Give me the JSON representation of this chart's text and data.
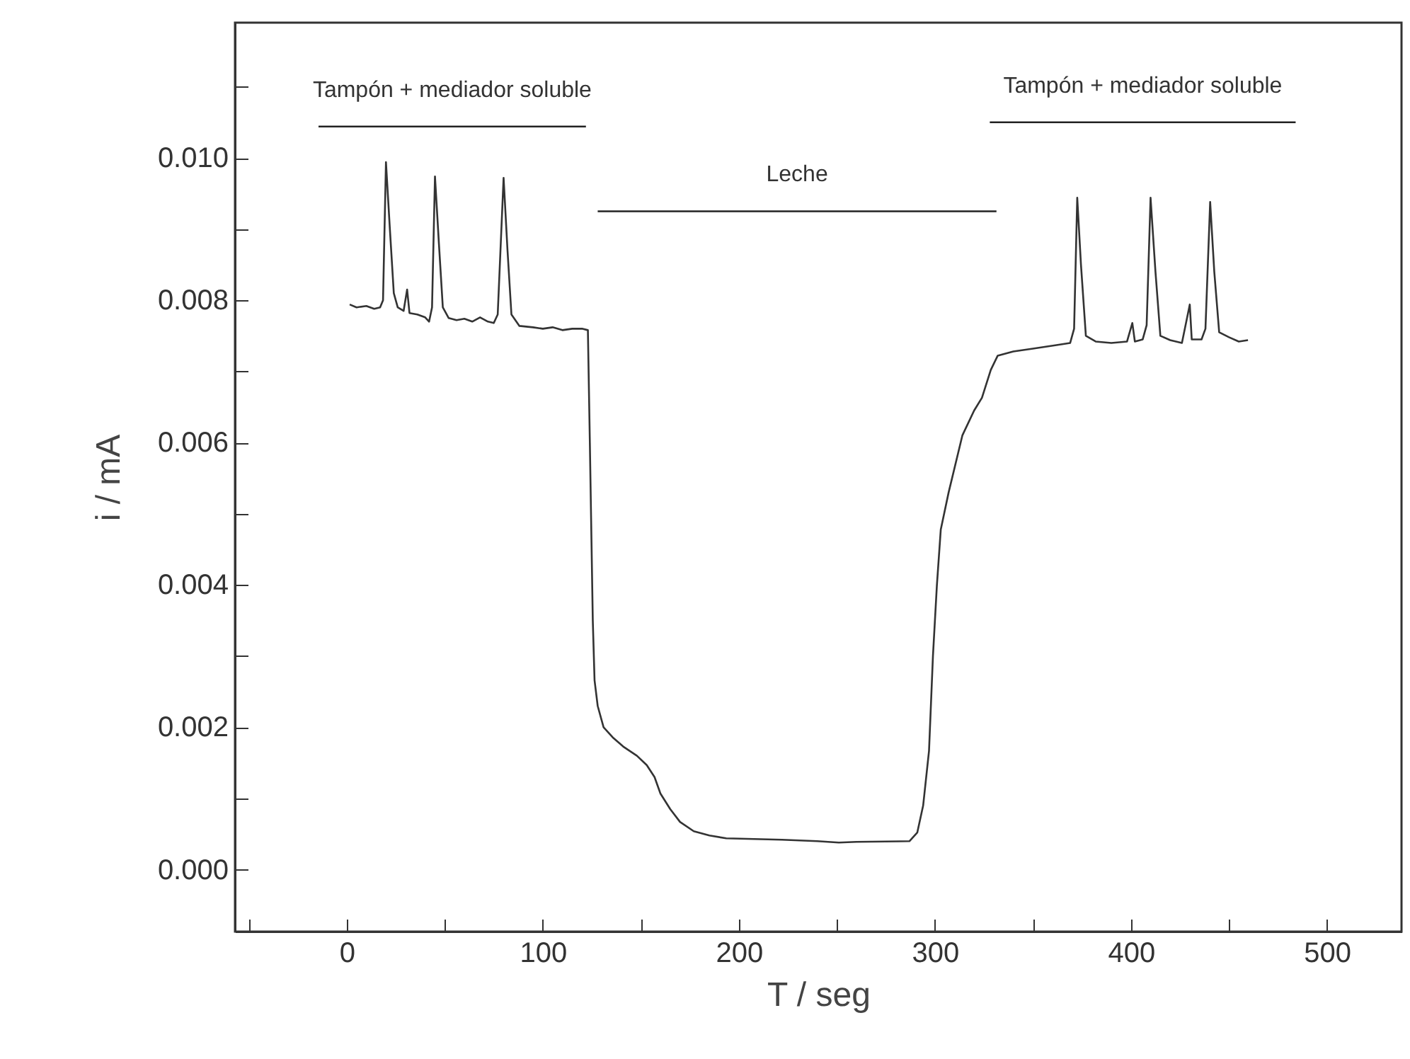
{
  "chart_data": {
    "type": "line",
    "xlabel": "T / seg",
    "ylabel": "i / mA",
    "xlim": [
      -57,
      538
    ],
    "ylim": [
      -0.00087,
      0.0119
    ],
    "xticks": [
      {
        "value": -50,
        "label": null
      },
      0,
      {
        "value": 50,
        "label": null
      },
      100,
      {
        "value": 150,
        "label": null
      },
      200,
      {
        "value": 250,
        "label": null
      },
      300,
      {
        "value": 350,
        "label": null
      },
      400,
      {
        "value": 450,
        "label": null
      },
      500
    ],
    "yticks": [
      {
        "value": 0,
        "label": "0.000"
      },
      {
        "value": 0.001,
        "label": null
      },
      {
        "value": 0.002,
        "label": "0.002"
      },
      {
        "value": 0.003,
        "label": null
      },
      {
        "value": 0.004,
        "label": "0.004"
      },
      {
        "value": 0.005,
        "label": null
      },
      {
        "value": 0.006,
        "label": "0.006"
      },
      {
        "value": 0.007,
        "label": null
      },
      {
        "value": 0.008,
        "label": "0.008"
      },
      {
        "value": 0.009,
        "label": null
      },
      {
        "value": 0.01,
        "label": "0.010"
      },
      {
        "value": 0.011,
        "label": null
      }
    ],
    "grid": false,
    "marker": "none",
    "line_style": "solid",
    "series": [
      {
        "color": "#333333",
        "x": [
          1.5,
          5,
          10,
          14,
          17,
          18.5,
          20,
          22,
          24,
          26,
          29,
          30.8,
          32,
          36,
          40,
          42,
          43.5,
          45,
          47,
          49,
          52,
          56,
          60,
          64,
          68,
          72,
          75,
          77,
          80,
          82,
          84,
          88,
          95,
          100,
          105,
          110,
          115,
          120,
          123,
          124,
          125.5,
          126.4,
          128,
          131,
          136,
          141,
          148,
          153,
          157,
          160,
          165,
          170,
          177,
          185,
          193.6,
          222,
          240,
          251,
          260,
          287,
          291,
          294,
          297,
          299,
          301,
          303,
          307,
          314,
          320,
          324,
          328.5,
          332,
          340,
          350,
          362,
          369,
          371,
          372.6,
          374.5,
          377,
          382,
          390,
          398,
          400.7,
          402,
          406,
          408,
          410,
          412.5,
          415,
          420,
          426,
          430,
          431,
          436,
          438,
          440.4,
          442.5,
          445,
          450,
          455,
          459.7
        ],
        "values": [
          0.00794,
          0.0079,
          0.00792,
          0.00788,
          0.0079,
          0.008,
          0.00994,
          0.009,
          0.0081,
          0.0079,
          0.00785,
          0.00815,
          0.00782,
          0.0078,
          0.00776,
          0.0077,
          0.0079,
          0.00974,
          0.0088,
          0.0079,
          0.00775,
          0.00772,
          0.00774,
          0.0077,
          0.00776,
          0.0077,
          0.00768,
          0.0078,
          0.00972,
          0.0087,
          0.0078,
          0.00764,
          0.00762,
          0.0076,
          0.00762,
          0.00758,
          0.0076,
          0.0076,
          0.00758,
          0.006,
          0.0035,
          0.00266,
          0.0023,
          0.002,
          0.00185,
          0.00173,
          0.0016,
          0.00147,
          0.0013,
          0.00107,
          0.00085,
          0.00067,
          0.00054,
          0.00048,
          0.00044,
          0.00042,
          0.0004,
          0.00038,
          0.00039,
          0.0004,
          0.00052,
          0.0009,
          0.00167,
          0.003,
          0.00399,
          0.00478,
          0.0053,
          0.0061,
          0.00645,
          0.00663,
          0.00702,
          0.00722,
          0.00728,
          0.00732,
          0.00737,
          0.0074,
          0.0076,
          0.00944,
          0.0085,
          0.0075,
          0.00742,
          0.0074,
          0.00742,
          0.00768,
          0.00742,
          0.00745,
          0.00765,
          0.00944,
          0.0084,
          0.0075,
          0.00744,
          0.0074,
          0.00794,
          0.00745,
          0.00745,
          0.0076,
          0.00938,
          0.0084,
          0.00755,
          0.00748,
          0.00742,
          0.00744
        ]
      },
      {
        "color": "#222222",
        "x": [
          -14.4,
          122
        ],
        "values": [
          0.01044,
          0.01044
        ]
      },
      {
        "color": "#222222",
        "x": [
          128,
          331.4
        ],
        "values": [
          0.00925,
          0.00925
        ]
      },
      {
        "color": "#222222",
        "x": [
          328,
          484
        ],
        "values": [
          0.0105,
          0.0105
        ]
      }
    ],
    "annotations": [
      "Tampón + mediador soluble",
      "Leche",
      "Tampón + mediador soluble"
    ]
  }
}
